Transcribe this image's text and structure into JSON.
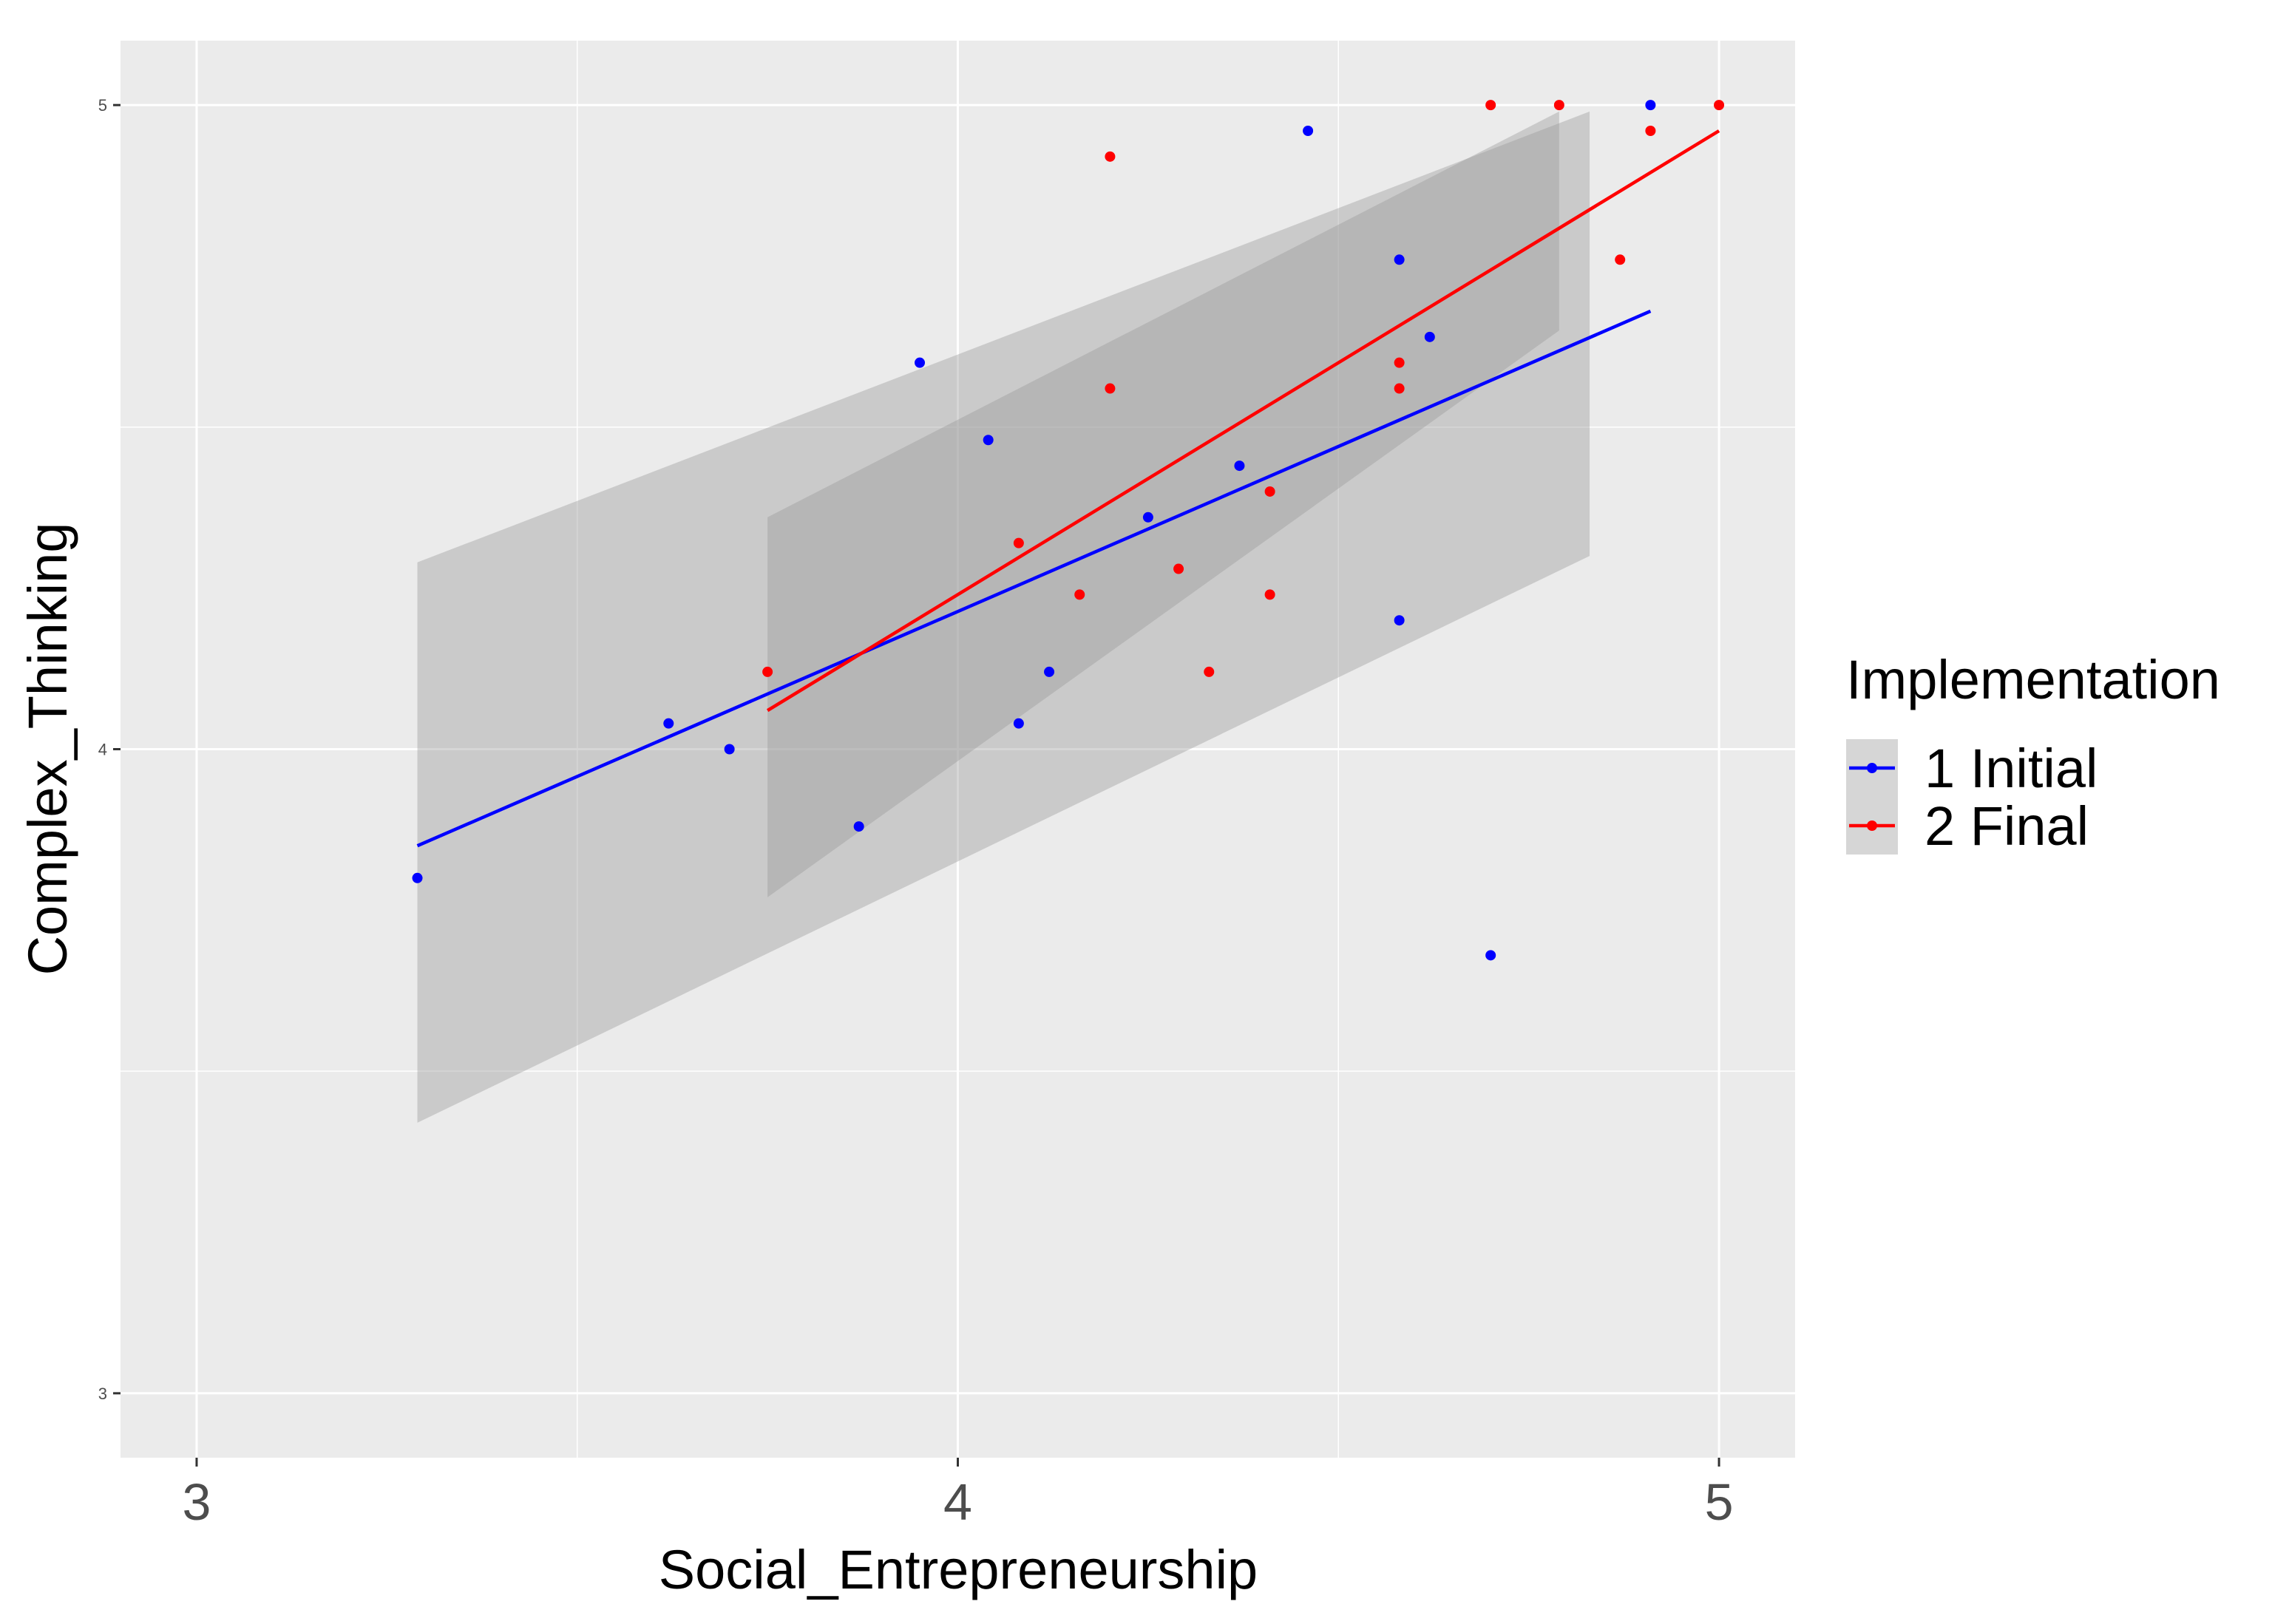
{
  "chart_data": {
    "type": "scatter",
    "xlabel": "Social_Entrepreneurship",
    "ylabel": "Complex_Thinking",
    "xlim": [
      2.9,
      5.1
    ],
    "ylim": [
      2.9,
      5.1
    ],
    "x_ticks": [
      "3",
      "4",
      "5"
    ],
    "y_ticks": [
      "3",
      "4",
      "5"
    ],
    "grid": true,
    "legend": {
      "title": "Implementation",
      "placement": "right",
      "entries": [
        "1 Initial",
        "2 Final"
      ]
    },
    "series": [
      {
        "name": "1 Initial",
        "color": "#0000ff",
        "points": [
          [
            3.29,
            3.8
          ],
          [
            3.62,
            4.04
          ],
          [
            3.7,
            4.0
          ],
          [
            3.87,
            3.88
          ],
          [
            3.95,
            4.6
          ],
          [
            4.04,
            4.48
          ],
          [
            4.08,
            4.04
          ],
          [
            4.12,
            4.12
          ],
          [
            4.25,
            4.36
          ],
          [
            4.37,
            4.44
          ],
          [
            4.46,
            4.96
          ],
          [
            4.58,
            4.76
          ],
          [
            4.58,
            4.2
          ],
          [
            4.62,
            4.64
          ],
          [
            4.7,
            3.68
          ],
          [
            4.91,
            5.0
          ]
        ],
        "fit": {
          "x": [
            3.29,
            4.91
          ],
          "y": [
            3.85,
            4.68
          ]
        },
        "band": {
          "x": [
            3.29,
            4.83
          ],
          "upper": [
            4.29,
            4.99
          ],
          "lower": [
            3.42,
            4.3
          ]
        }
      },
      {
        "name": "2 Final",
        "color": "#ff0000",
        "points": [
          [
            3.75,
            4.12
          ],
          [
            4.08,
            4.32
          ],
          [
            4.16,
            4.24
          ],
          [
            4.2,
            4.92
          ],
          [
            4.2,
            4.56
          ],
          [
            4.29,
            4.28
          ],
          [
            4.33,
            4.12
          ],
          [
            4.41,
            4.4
          ],
          [
            4.41,
            4.24
          ],
          [
            4.58,
            4.6
          ],
          [
            4.58,
            4.56
          ],
          [
            4.7,
            5.0
          ],
          [
            4.79,
            5.0
          ],
          [
            4.87,
            4.76
          ],
          [
            4.91,
            4.96
          ],
          [
            5.0,
            5.0
          ]
        ],
        "fit": {
          "x": [
            3.75,
            5.0
          ],
          "y": [
            4.06,
            4.96
          ]
        },
        "band": {
          "x": [
            3.75,
            4.79
          ],
          "upper": [
            4.36,
            4.99
          ],
          "lower": [
            3.77,
            4.65
          ]
        }
      }
    ],
    "confidence_band_color": "#999999"
  }
}
